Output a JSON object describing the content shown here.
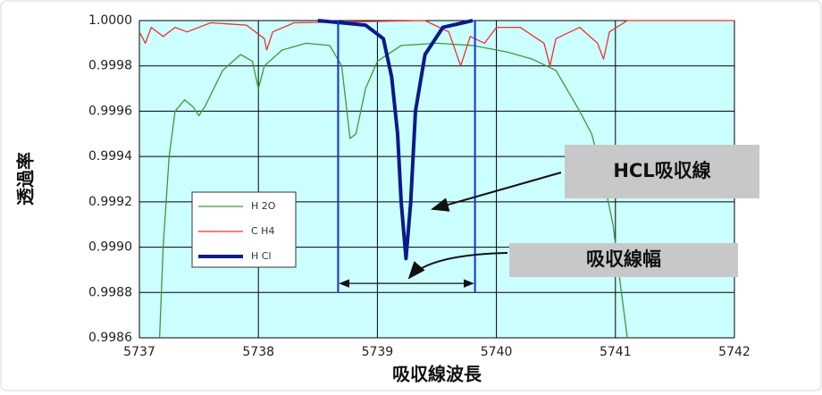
{
  "chart_data": {
    "type": "line",
    "y_label": "透過率",
    "x_label": "吸収線波長",
    "xlim": [
      5737,
      5742
    ],
    "xticks": [
      5737,
      5738,
      5739,
      5740,
      5741,
      5742
    ],
    "ylim": [
      0.9986,
      1.0
    ],
    "yticks": [
      {
        "value": 0.9986,
        "label": "0.9986"
      },
      {
        "value": 0.9988,
        "label": "0.9988"
      },
      {
        "value": 0.999,
        "label": "0.9990"
      },
      {
        "value": 0.9992,
        "label": "0.9992"
      },
      {
        "value": 0.9994,
        "label": "0.9994"
      },
      {
        "value": 0.9996,
        "label": "0.9996"
      },
      {
        "value": 0.9998,
        "label": "0.9998"
      },
      {
        "value": 1.0,
        "label": "1.0000"
      }
    ],
    "grid": true,
    "series": [
      {
        "name": "H 2O",
        "color": "#3a9a3a",
        "width": 1.3,
        "x": [
          5737.17,
          5737.2,
          5737.25,
          5737.3,
          5737.38,
          5737.45,
          5737.5,
          5737.55,
          5737.7,
          5737.85,
          5737.95,
          5738.0,
          5738.05,
          5738.2,
          5738.4,
          5738.6,
          5738.7,
          5738.77,
          5738.82,
          5738.9,
          5739.0,
          5739.2,
          5739.5,
          5739.8,
          5740.1,
          5740.3,
          5740.5,
          5740.7,
          5740.8,
          5740.9,
          5740.98,
          5741.05,
          5741.1
        ],
        "values": [
          0.9986,
          0.999,
          0.9994,
          0.9996,
          0.99965,
          0.99962,
          0.99958,
          0.99962,
          0.99978,
          0.99985,
          0.99982,
          0.9997,
          0.9998,
          0.99987,
          0.9999,
          0.99989,
          0.9998,
          0.99948,
          0.9995,
          0.9997,
          0.99982,
          0.99989,
          0.9999,
          0.99989,
          0.99986,
          0.99983,
          0.99978,
          0.9996,
          0.9995,
          0.9993,
          0.9991,
          0.9988,
          0.9986
        ]
      },
      {
        "name": "C H4",
        "color": "#ee3030",
        "width": 1.3,
        "x": [
          5737.0,
          5737.05,
          5737.1,
          5737.2,
          5737.3,
          5737.4,
          5737.6,
          5737.9,
          5738.05,
          5738.07,
          5738.12,
          5738.3,
          5739.4,
          5739.6,
          5739.7,
          5739.78,
          5739.9,
          5740.0,
          5740.2,
          5740.4,
          5740.45,
          5740.5,
          5740.7,
          5740.85,
          5740.9,
          5740.95,
          5741.1,
          5742.0
        ],
        "values": [
          0.99995,
          0.9999,
          0.99997,
          0.99993,
          0.99997,
          0.99995,
          0.99999,
          0.99998,
          0.99992,
          0.99987,
          0.99995,
          0.99999,
          1.0,
          0.99995,
          0.9998,
          0.99993,
          0.9999,
          0.99997,
          0.99997,
          0.9999,
          0.9998,
          0.99992,
          0.99997,
          0.9999,
          0.99983,
          0.99995,
          1.0,
          1.0
        ]
      },
      {
        "name": "H Cl",
        "color": "#0a1a8a",
        "width": 4,
        "x": [
          5738.5,
          5738.9,
          5739.05,
          5739.12,
          5739.17,
          5739.2,
          5739.24,
          5739.28,
          5739.32,
          5739.4,
          5739.55,
          5739.8
        ],
        "values": [
          1.0,
          0.99998,
          0.99992,
          0.99975,
          0.9995,
          0.9992,
          0.99895,
          0.9992,
          0.9996,
          0.99985,
          0.99997,
          1.0
        ]
      }
    ],
    "width_markers": [
      5738.67,
      5739.82
    ],
    "width_marker_bottom": 0.9988,
    "width_arrow_y": 0.99884,
    "annotations": [
      "HCL吸収線",
      "吸収線幅"
    ]
  }
}
